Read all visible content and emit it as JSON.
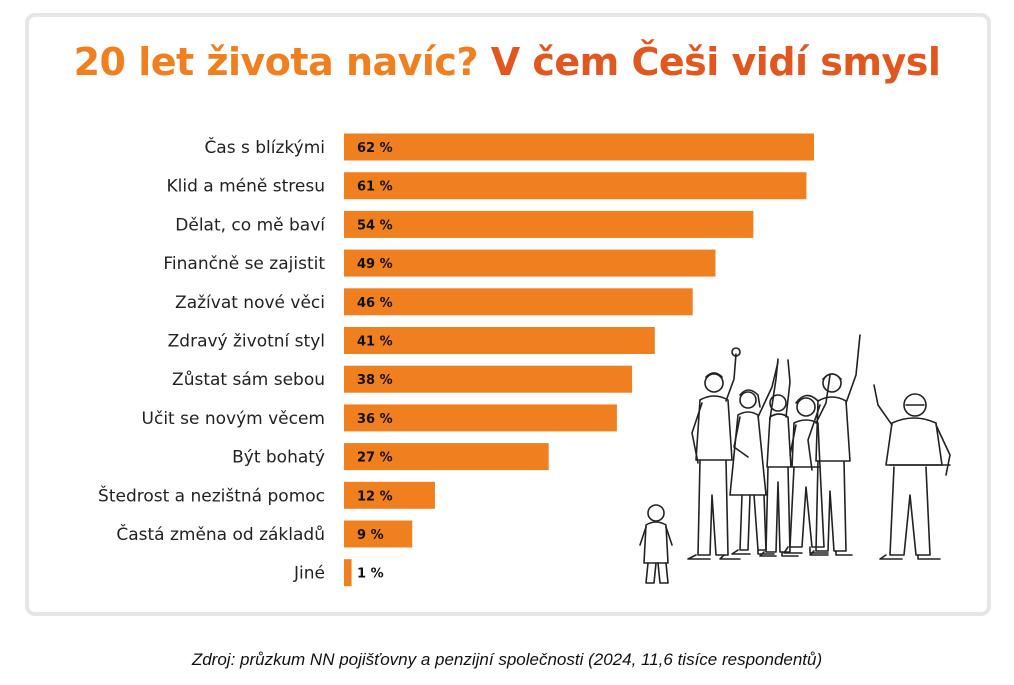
{
  "title": {
    "part1": "20 let života navíc?",
    "part2": "V čem Češi vidí smysl"
  },
  "colors": {
    "bar": "#f0801f",
    "title_light": "#f0801f",
    "title_dark": "#e2571e",
    "label_text": "#222222"
  },
  "chart_data": {
    "type": "bar",
    "orientation": "horizontal",
    "title": "20 let života navíc? V čem Češi vidí smysl",
    "categories": [
      "Čas s blízkými",
      "Klid a méně stresu",
      "Dělat, co mě baví",
      "Finančně se zajistit",
      "Zažívat nové věci",
      "Zdravý životní styl",
      "Zůstat sám sebou",
      "Učit se novým věcem",
      "Být bohatý",
      "Štedrost a nezištná pomoc",
      "Častá změna od základů",
      "Jiné"
    ],
    "values": [
      62,
      61,
      54,
      49,
      46,
      41,
      38,
      36,
      27,
      12,
      9,
      1
    ],
    "value_labels": [
      "62 %",
      "61 %",
      "54 %",
      "49 %",
      "46 %",
      "41 %",
      "38 %",
      "36 %",
      "27 %",
      "12 %",
      "9 %",
      "1 %"
    ],
    "unit": "%",
    "xlim": [
      0,
      62
    ],
    "grid": false,
    "legend": "none"
  },
  "illustration": {
    "icon": "group-of-people-cheering-illustration"
  },
  "source": "Zdroj: průzkum NN pojišťovny a penzijní společnosti (2024, 11,6 tisíce respondentů)"
}
